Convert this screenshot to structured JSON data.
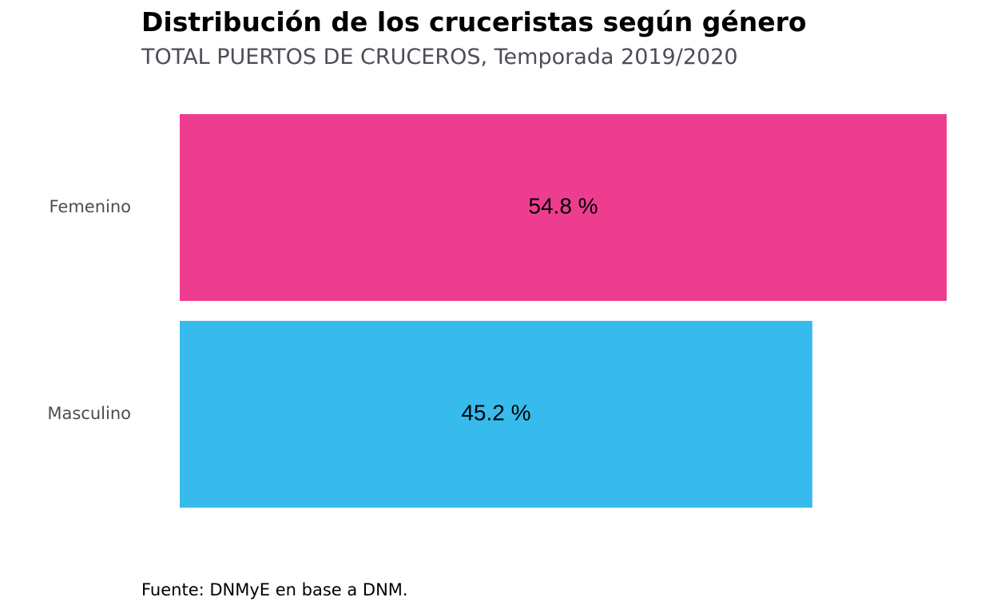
{
  "title": "Distribución de los cruceristas según género",
  "subtitle": "TOTAL PUERTOS DE CRUCEROS, Temporada 2019/2020",
  "caption": "Fuente: DNMyE en base a DNM.",
  "chart_data": {
    "type": "bar",
    "orientation": "horizontal",
    "title": "Distribución de los cruceristas según género",
    "subtitle": "TOTAL PUERTOS DE CRUCEROS, Temporada 2019/2020",
    "categories": [
      "Femenino",
      "Masculino"
    ],
    "values": [
      54.8,
      45.2
    ],
    "data_labels": [
      "54.8 %",
      "45.2 %"
    ],
    "colors": [
      "#ee3d8f",
      "#37bbed"
    ],
    "xlim": [
      0,
      54.8
    ],
    "grid": false
  }
}
